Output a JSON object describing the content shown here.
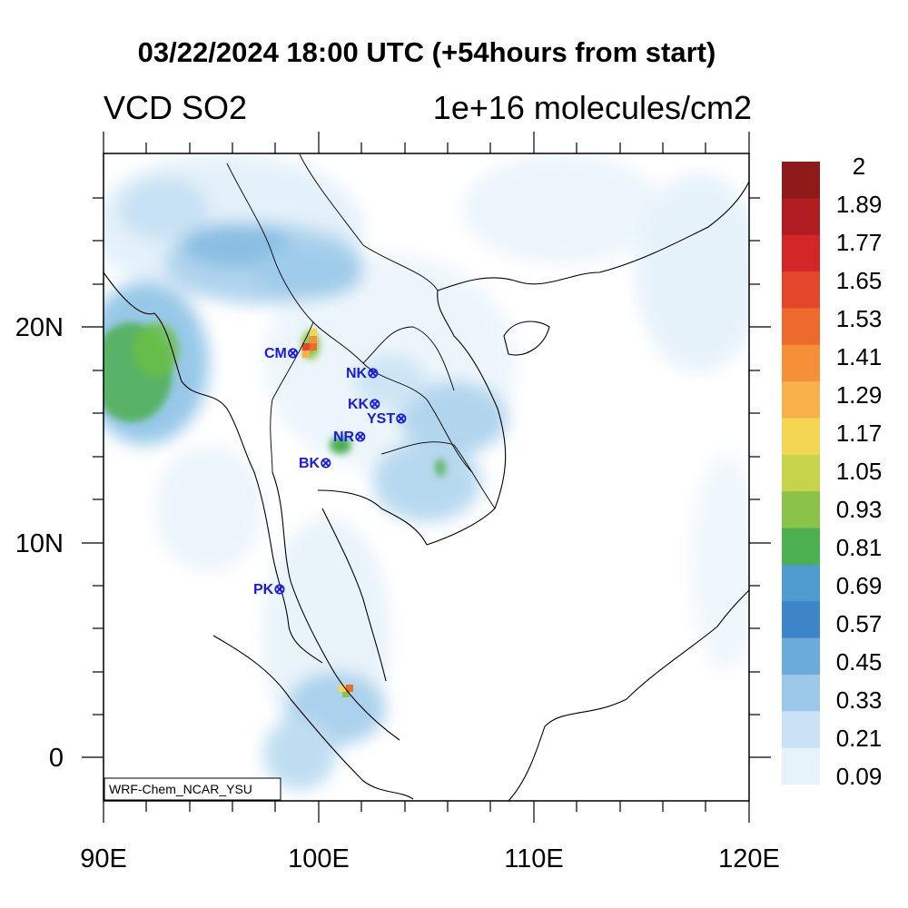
{
  "title": "03/22/2024 18:00 UTC (+54hours from start)",
  "variable": "VCD SO2",
  "units": "1e+16 molecules/cm2",
  "model_label": "WRF-Chem_NCAR_YSU",
  "axes": {
    "lon_ticks": [
      "90E",
      "100E",
      "110E",
      "120E"
    ],
    "lat_ticks": [
      "20N",
      "10N",
      "0"
    ]
  },
  "colorbar": {
    "labels": [
      "2",
      "1.89",
      "1.77",
      "1.65",
      "1.53",
      "1.41",
      "1.29",
      "1.17",
      "1.05",
      "0.93",
      "0.81",
      "0.69",
      "0.57",
      "0.45",
      "0.33",
      "0.21",
      "0.09"
    ],
    "colors": [
      "#8e1a1a",
      "#b01e22",
      "#d32627",
      "#e4462a",
      "#ee6a2c",
      "#f58f38",
      "#f8b14a",
      "#f5d653",
      "#c8d34c",
      "#8bc34a",
      "#4caf50",
      "#4f9bcf",
      "#3e85c8",
      "#6aabdc",
      "#9cc9ea",
      "#c9e2f4",
      "#e6f3fb"
    ]
  },
  "stations": [
    {
      "code": "CM"
    },
    {
      "code": "NK"
    },
    {
      "code": "KK"
    },
    {
      "code": "YST"
    },
    {
      "code": "NR"
    },
    {
      "code": "BK"
    },
    {
      "code": "PK"
    }
  ],
  "station_symbol": "⊗",
  "station_color": "#1a1ae6"
}
